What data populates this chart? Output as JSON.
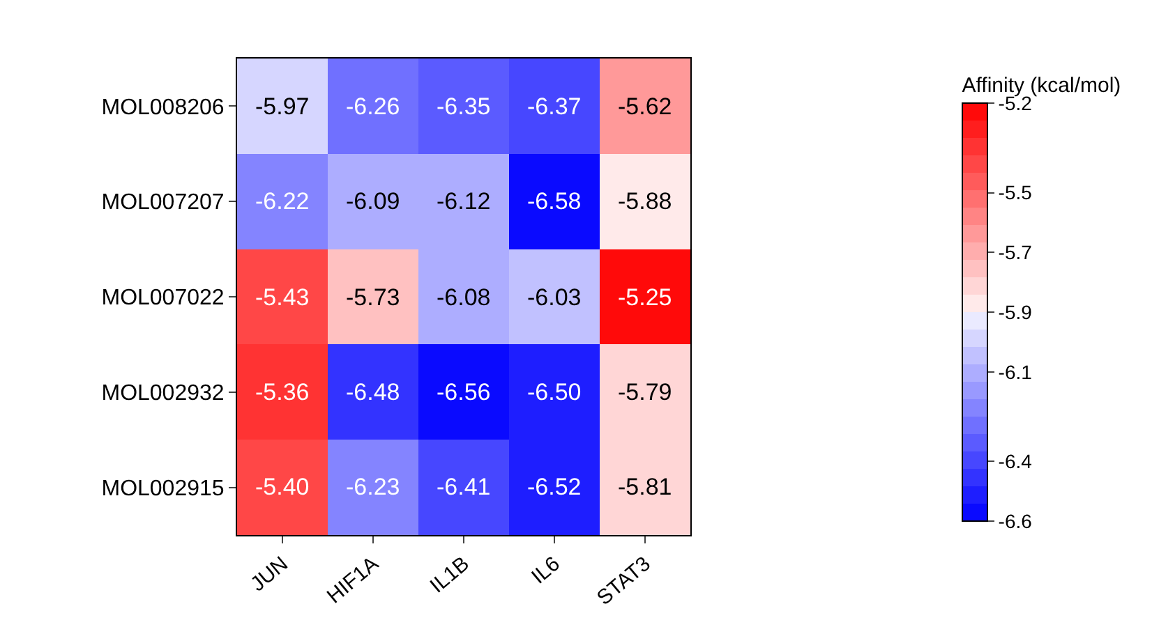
{
  "chart_data": {
    "type": "heatmap",
    "clabel": "Affinity (kcal/mol)",
    "categories": [
      "JUN",
      "HIF1A",
      "IL1B",
      "IL6",
      "STAT3"
    ],
    "y_categories": [
      "MOL008206",
      "MOL007207",
      "MOL007022",
      "MOL002932",
      "MOL002915"
    ],
    "cells": [
      [
        -5.97,
        -6.26,
        -6.35,
        -6.37,
        -5.62
      ],
      [
        -6.22,
        -6.09,
        -6.12,
        -6.58,
        -5.88
      ],
      [
        -5.43,
        -5.73,
        -6.08,
        -6.03,
        -5.25
      ],
      [
        -5.36,
        -6.48,
        -6.56,
        -6.5,
        -5.79
      ],
      [
        -5.4,
        -6.23,
        -6.41,
        -6.52,
        -5.81
      ]
    ],
    "cell_labels": [
      [
        "-5.97",
        "-6.26",
        "-6.35",
        "-6.37",
        "-5.62"
      ],
      [
        "-6.22",
        "-6.09",
        "-6.12",
        "-6.58",
        "-5.88"
      ],
      [
        "-5.43",
        "-5.73",
        "-6.08",
        "-6.03",
        "-5.25"
      ],
      [
        "-5.36",
        "-6.48",
        "-6.56",
        "-6.50",
        "-5.79"
      ],
      [
        "-5.40",
        "-6.23",
        "-6.41",
        "-6.52",
        "-5.81"
      ]
    ],
    "clim": [
      -6.6,
      -5.2
    ],
    "cticks": [
      -5.2,
      -5.5,
      -5.7,
      -5.9,
      -6.1,
      -6.4,
      -6.6
    ]
  }
}
